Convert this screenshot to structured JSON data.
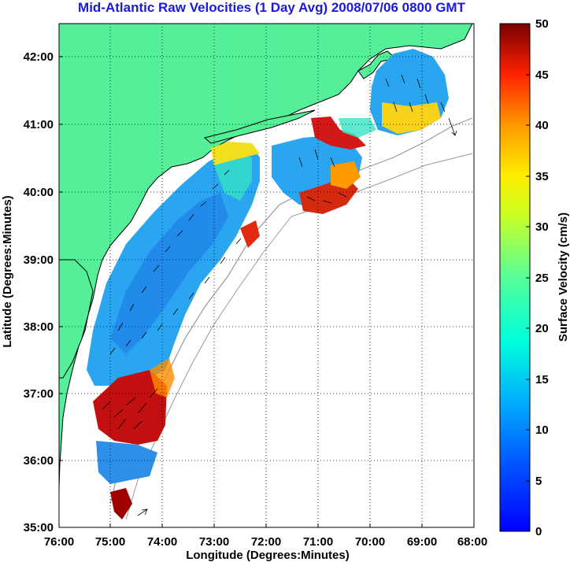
{
  "title": "Mid-Atlantic Raw Velocities (1 Day Avg) 2008/07/06 0800 GMT",
  "map": {
    "xlabel": "Longitude (Degrees:Minutes)",
    "ylabel": "Latitude (Degrees:Minutes)",
    "x_ticks": [
      "76:00",
      "75:00",
      "74:00",
      "73:00",
      "72:00",
      "71:00",
      "70:00",
      "69:00",
      "68:00"
    ],
    "y_ticks": [
      "35:00",
      "36:00",
      "37:00",
      "38:00",
      "39:00",
      "40:00",
      "41:00",
      "42:00"
    ],
    "lon_range": [
      -76,
      -68
    ],
    "lat_range": [
      35,
      42.5
    ],
    "grid": "dotted",
    "land_color": "#55ee99",
    "ocean_color": "#ffffff",
    "coast_color": "#000000",
    "bathymetry_color": "#999999"
  },
  "colorbar": {
    "label": "Surface Velocity (cm/s)",
    "ticks": [
      "0",
      "5",
      "10",
      "15",
      "20",
      "25",
      "30",
      "35",
      "40",
      "45",
      "50"
    ],
    "min": 0,
    "max": 50,
    "colormap": "jet"
  }
}
